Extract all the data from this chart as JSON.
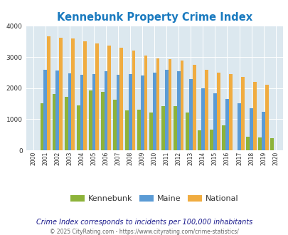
{
  "title": "Kennebunk Property Crime Index",
  "years": [
    2000,
    2001,
    2002,
    2003,
    2004,
    2005,
    2006,
    2007,
    2008,
    2009,
    2010,
    2011,
    2012,
    2013,
    2014,
    2015,
    2016,
    2017,
    2018,
    2019,
    2020
  ],
  "kennebunk": [
    0,
    1520,
    1800,
    1720,
    1450,
    1930,
    1870,
    1620,
    1290,
    1300,
    1220,
    1430,
    1430,
    1220,
    640,
    670,
    810,
    0,
    430,
    420,
    390
  ],
  "maine": [
    0,
    2600,
    2560,
    2470,
    2430,
    2450,
    2550,
    2430,
    2460,
    2400,
    2500,
    2580,
    2540,
    2290,
    2000,
    1840,
    1640,
    1520,
    1360,
    1240,
    0
  ],
  "national": [
    0,
    3660,
    3620,
    3600,
    3510,
    3430,
    3360,
    3290,
    3210,
    3040,
    2960,
    2940,
    2890,
    2750,
    2600,
    2500,
    2460,
    2360,
    2190,
    2100,
    0
  ],
  "kennebunk_color": "#8db33a",
  "maine_color": "#5b9bd5",
  "national_color": "#f0ac40",
  "bg_color": "#dce8ef",
  "ylim": [
    0,
    4000
  ],
  "note_text": "Crime Index corresponds to incidents per 100,000 inhabitants",
  "copyright": "© 2025 CityRating.com - https://www.cityrating.com/crime-statistics/",
  "legend_labels": [
    "Kennebunk",
    "Maine",
    "National"
  ],
  "bar_width": 0.28,
  "title_color": "#1a7abf",
  "note_color": "#1a1a8c",
  "copyright_color": "#666666"
}
